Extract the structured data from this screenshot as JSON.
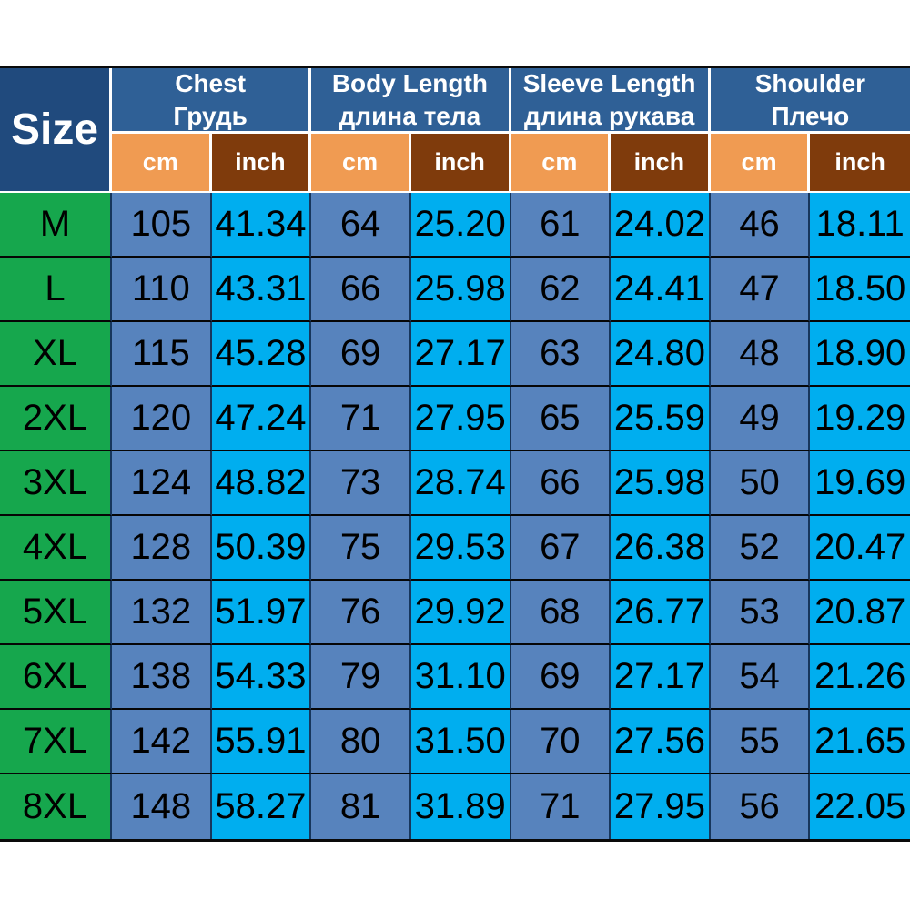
{
  "chart_data": {
    "type": "table",
    "corner_header": "Size",
    "unit_labels": [
      "cm",
      "inch"
    ],
    "column_groups": [
      {
        "label_en": "Chest",
        "label_ru": "Грудь"
      },
      {
        "label_en": "Body Length",
        "label_ru": "длина тела"
      },
      {
        "label_en": "Sleeve Length",
        "label_ru": "длина рукава"
      },
      {
        "label_en": "Shoulder",
        "label_ru": "Плечо"
      }
    ],
    "rows": [
      {
        "size": "M",
        "cells": [
          "105",
          "41.34",
          "64",
          "25.20",
          "61",
          "24.02",
          "46",
          "18.11"
        ]
      },
      {
        "size": "L",
        "cells": [
          "110",
          "43.31",
          "66",
          "25.98",
          "62",
          "24.41",
          "47",
          "18.50"
        ]
      },
      {
        "size": "XL",
        "cells": [
          "115",
          "45.28",
          "69",
          "27.17",
          "63",
          "24.80",
          "48",
          "18.90"
        ]
      },
      {
        "size": "2XL",
        "cells": [
          "120",
          "47.24",
          "71",
          "27.95",
          "65",
          "25.59",
          "49",
          "19.29"
        ]
      },
      {
        "size": "3XL",
        "cells": [
          "124",
          "48.82",
          "73",
          "28.74",
          "66",
          "25.98",
          "50",
          "19.69"
        ]
      },
      {
        "size": "4XL",
        "cells": [
          "128",
          "50.39",
          "75",
          "29.53",
          "67",
          "26.38",
          "52",
          "20.47"
        ]
      },
      {
        "size": "5XL",
        "cells": [
          "132",
          "51.97",
          "76",
          "29.92",
          "68",
          "26.77",
          "53",
          "20.87"
        ]
      },
      {
        "size": "6XL",
        "cells": [
          "138",
          "54.33",
          "79",
          "31.10",
          "69",
          "27.17",
          "54",
          "21.26"
        ]
      },
      {
        "size": "7XL",
        "cells": [
          "142",
          "55.91",
          "80",
          "31.50",
          "70",
          "27.56",
          "55",
          "21.65"
        ]
      },
      {
        "size": "8XL",
        "cells": [
          "148",
          "58.27",
          "81",
          "31.89",
          "71",
          "27.95",
          "56",
          "22.05"
        ]
      }
    ]
  },
  "colors": {
    "corner_bg": "#204A7D",
    "group_header_bg": "#2F6096",
    "cm_header_bg": "#F09B52",
    "inch_header_bg": "#7F3B0C",
    "size_column_bg": "#16A74D",
    "cm_cell_bg": "#5783BD",
    "inch_cell_bg": "#00AEEF",
    "header_text": "#FFFFFF",
    "cell_text": "#000000",
    "data_grid_vertical": "#17365C",
    "data_grid_horizontal": "#060606"
  }
}
